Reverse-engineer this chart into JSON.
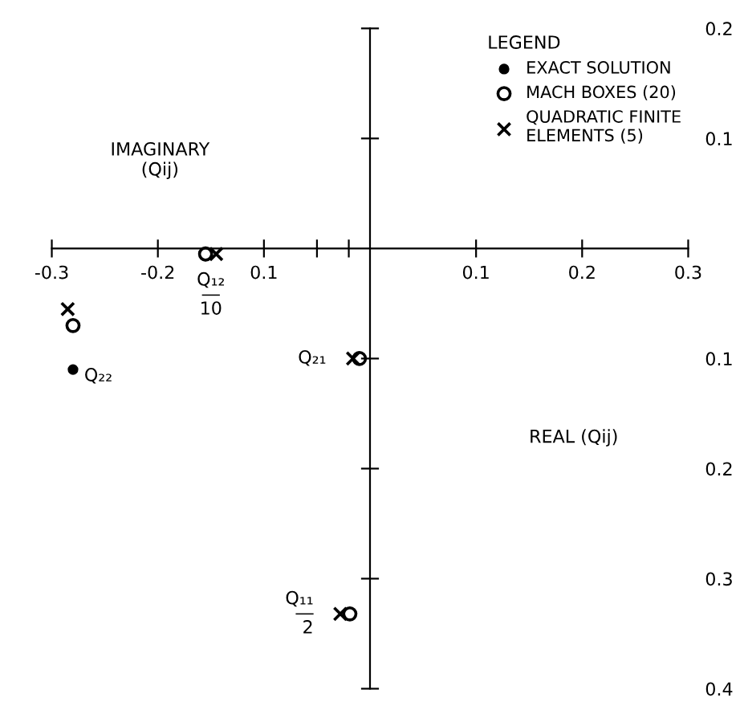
{
  "chart_data": {
    "type": "scatter",
    "xlabel": "REAL (Qij)",
    "ylabel": "IMAGINARY\n(Qij)",
    "legend_title": "LEGEND",
    "series": [
      {
        "name": "EXACT SOLUTION",
        "color": "#000000",
        "marker": "circle",
        "x": [
          -0.28
        ],
        "values": [
          -0.11
        ]
      },
      {
        "name": "MACH BOXES (20)",
        "color": "#000000",
        "marker": "circle",
        "x": [
          -0.155,
          -0.28,
          -0.01,
          -0.019
        ],
        "values": [
          -0.005,
          -0.07,
          -0.1,
          -0.332
        ]
      },
      {
        "name": "QUADRATIC FINITE\nELEMENTS (5)",
        "color": "#000000",
        "marker": "cross",
        "x": [
          -0.145,
          -0.285,
          -0.016,
          -0.028
        ],
        "values": [
          -0.005,
          -0.055,
          -0.1,
          -0.332
        ]
      }
    ],
    "annotations": [
      {
        "text": "Q₁₂\n―\n10",
        "x": -0.15,
        "y": -0.005
      },
      {
        "text": "Q₂₂",
        "x": -0.28,
        "y": -0.11
      },
      {
        "text": "Q₂₁",
        "x": -0.016,
        "y": -0.1
      },
      {
        "text": "Q₁₁\n―\n2",
        "x": -0.028,
        "y": -0.332
      }
    ],
    "xlim": [
      -0.3,
      0.3
    ],
    "ylim": [
      -0.4,
      0.2
    ],
    "xticks": [
      {
        "value": -0.3,
        "label": "-0.3"
      },
      {
        "value": -0.2,
        "label": "-0.2"
      },
      {
        "value": -0.1,
        "label": "0.1"
      },
      {
        "value": -0.05,
        "label": null
      },
      {
        "value": -0.02,
        "label": null
      },
      0.1,
      0.2,
      0.3
    ],
    "yticks": [
      0.2,
      0.1,
      {
        "value": -0.1,
        "label": "0.1"
      },
      {
        "value": -0.2,
        "label": "0.2"
      },
      {
        "value": -0.3,
        "label": "0.3"
      },
      {
        "value": -0.4,
        "label": "0.4"
      }
    ],
    "legend": "top right",
    "grid": false
  }
}
